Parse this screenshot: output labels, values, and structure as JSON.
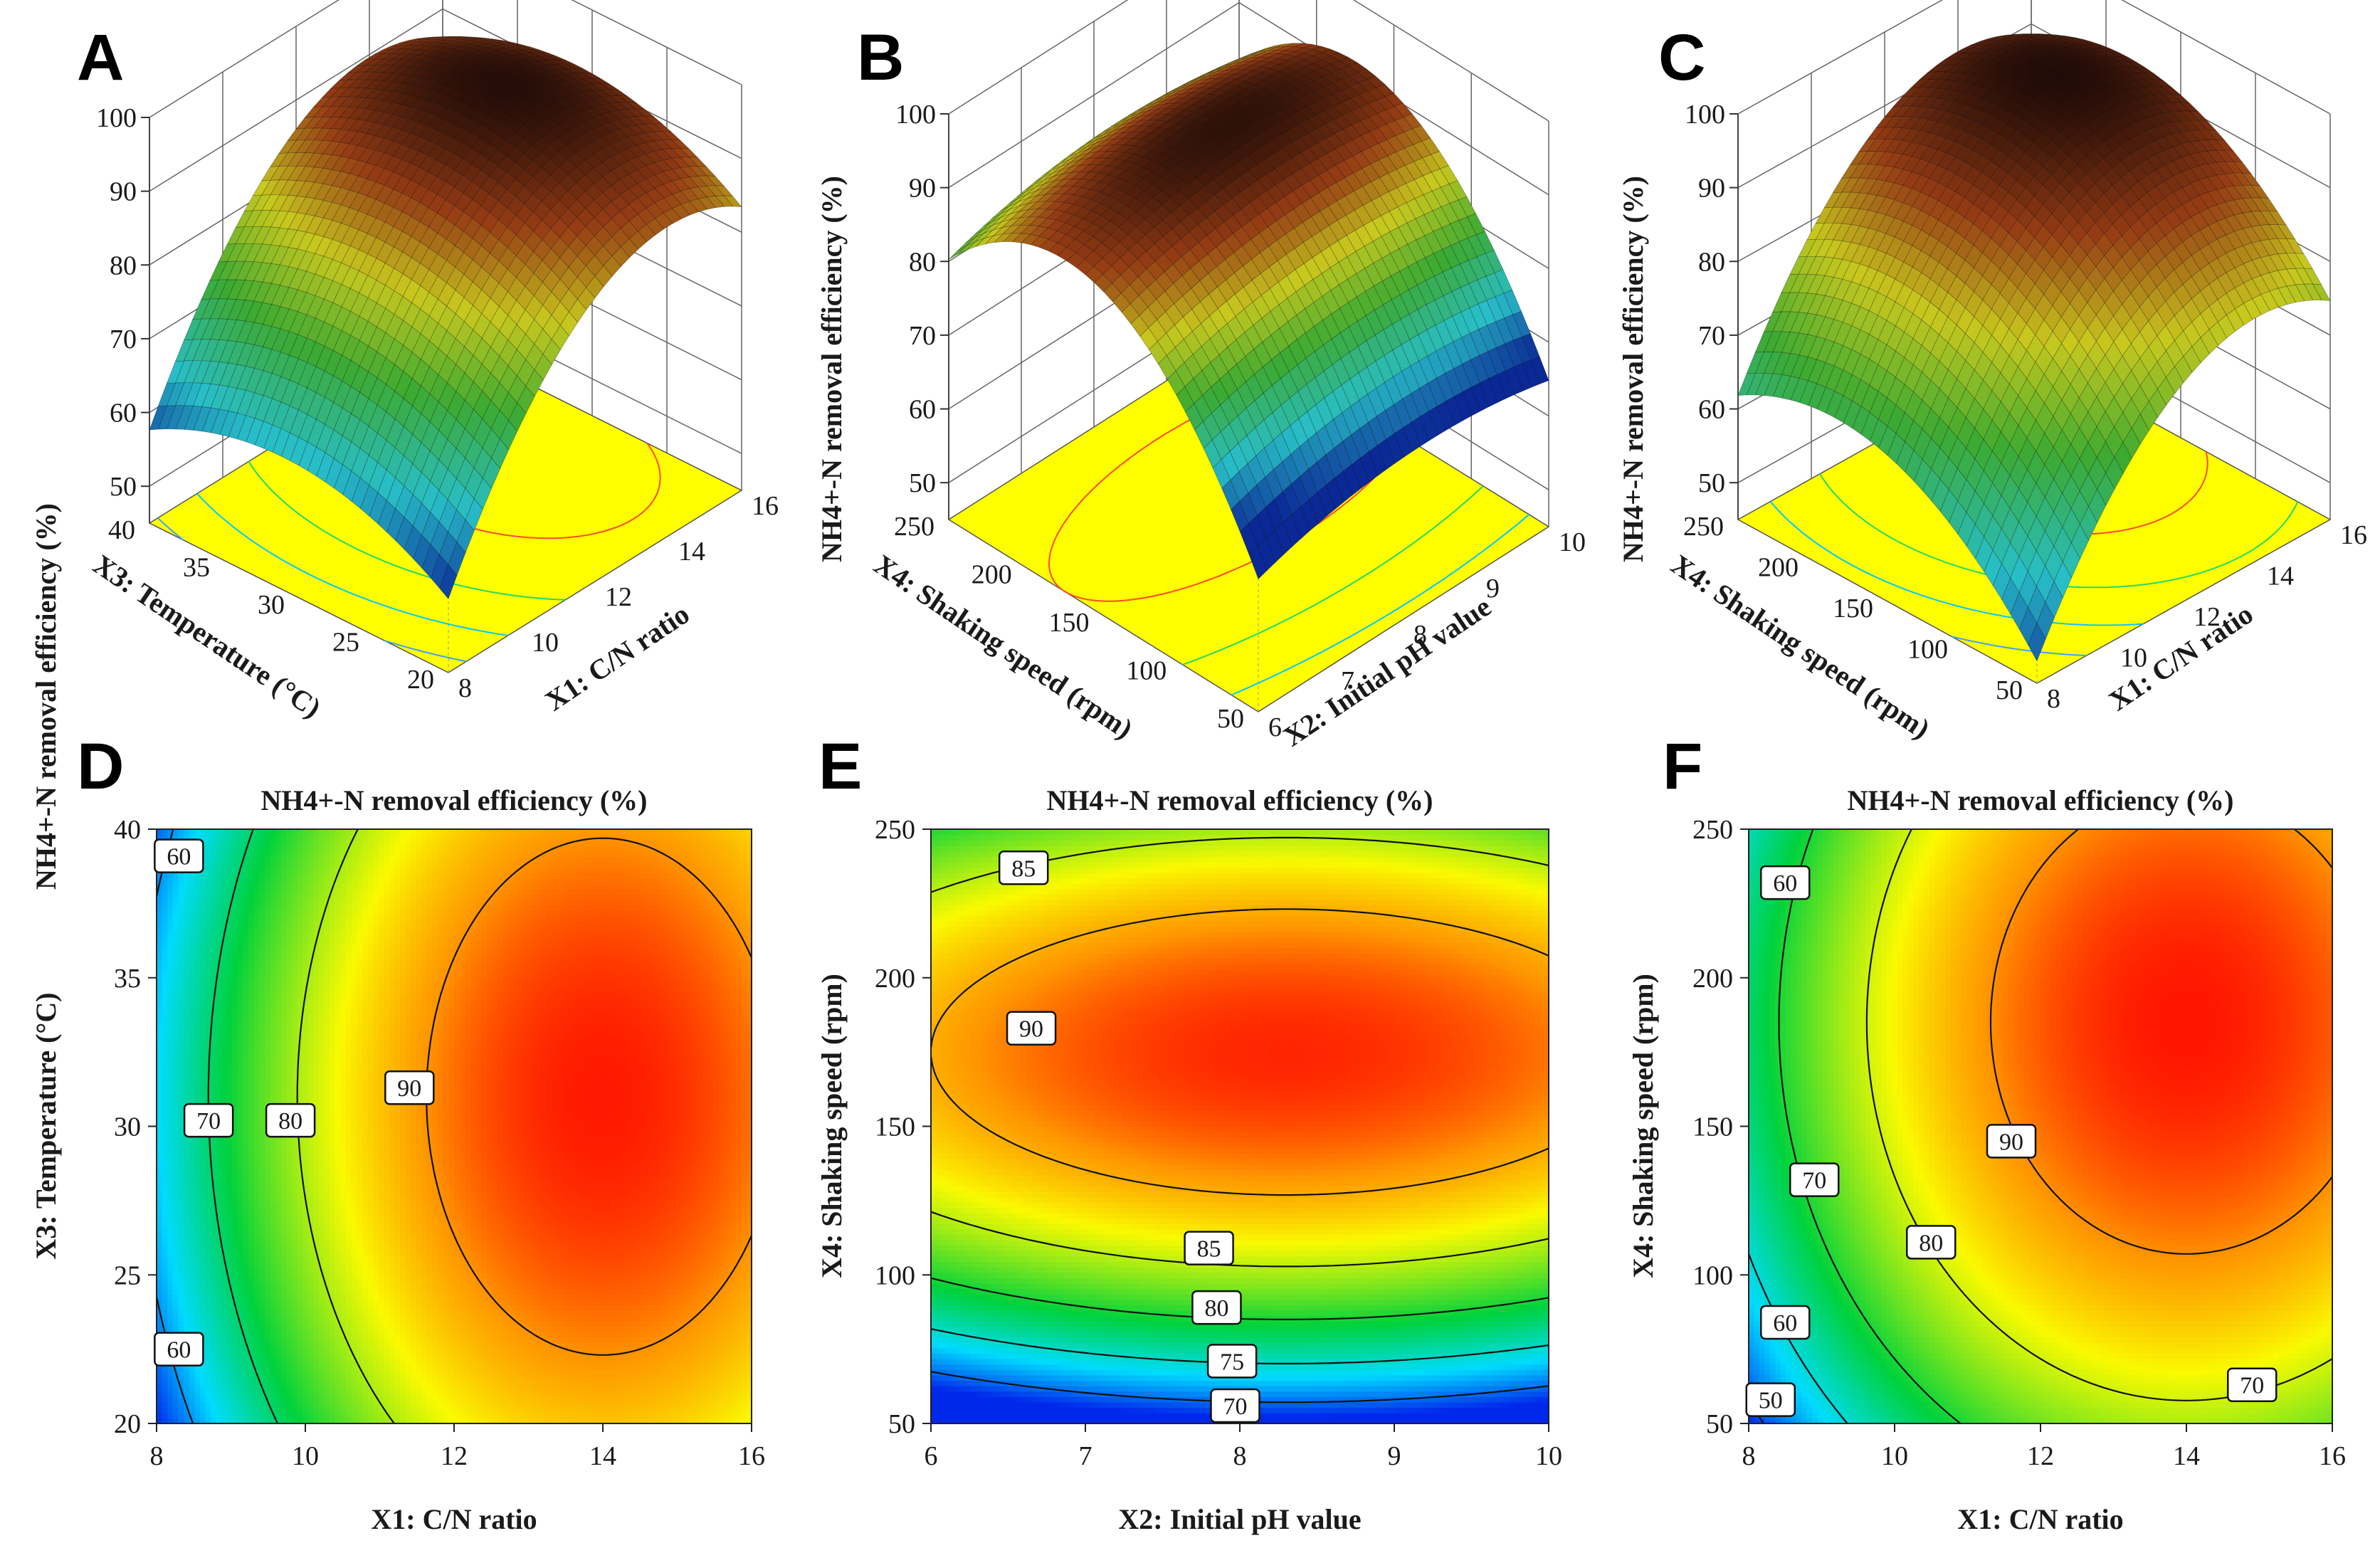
{
  "figure": {
    "panels": [
      "A",
      "B",
      "C",
      "D",
      "E",
      "F"
    ],
    "response": "NH4+-N removal efficiency (%)"
  },
  "chart_data": [
    {
      "panel": "A",
      "type": "surface3d",
      "zlabel": "NH4+-N removal efficiency (%)",
      "zlim": [
        45,
        100
      ],
      "ztick_labels": [
        "50",
        "60",
        "70",
        "80",
        "90",
        "100"
      ],
      "xlabel": "X1: C/N ratio",
      "xlim": [
        8,
        16
      ],
      "xtick_labels": [
        "8",
        "10",
        "12",
        "14",
        "16"
      ],
      "ylabel": "X3: Temperature (°C)",
      "ylim": [
        20,
        40
      ],
      "ytick_labels": [
        "20",
        "25",
        "30",
        "35",
        "40"
      ],
      "surface_range": [
        55,
        96
      ]
    },
    {
      "panel": "B",
      "type": "surface3d",
      "zlabel": "NH4+-N removal efficiency (%)",
      "zlim": [
        45,
        100
      ],
      "ztick_labels": [
        "50",
        "60",
        "70",
        "80",
        "90",
        "100"
      ],
      "xlabel": "X2: Initial pH value",
      "xlim": [
        6,
        10
      ],
      "xtick_labels": [
        "6",
        "7",
        "8",
        "9",
        "10"
      ],
      "ylabel": "X4: Shaking speed (rpm)",
      "ylim": [
        50,
        250
      ],
      "ytick_labels": [
        "50",
        "100",
        "150",
        "200",
        "250"
      ],
      "surface_range": [
        68,
        95
      ]
    },
    {
      "panel": "C",
      "type": "surface3d",
      "zlabel": "NH4+-N removal efficiency (%)",
      "zlim": [
        45,
        100
      ],
      "ztick_labels": [
        "50",
        "60",
        "70",
        "80",
        "90",
        "100"
      ],
      "xlabel": "X1: C/N ratio",
      "xlim": [
        8,
        16
      ],
      "xtick_labels": [
        "8",
        "10",
        "12",
        "14",
        "16"
      ],
      "ylabel": "X4: Shaking speed (rpm)",
      "ylim": [
        50,
        250
      ],
      "ytick_labels": [
        "50",
        "100",
        "150",
        "200",
        "250"
      ],
      "surface_range": [
        45,
        97
      ]
    },
    {
      "panel": "D",
      "type": "contour",
      "title": "NH4+-N removal efficiency (%)",
      "xlabel": "X1: C/N ratio",
      "ylabel": "X3: Temperature (°C)",
      "xlim": [
        8,
        16
      ],
      "ylim": [
        20,
        40
      ],
      "xticks": [
        8,
        10,
        12,
        14,
        16
      ],
      "yticks": [
        20,
        25,
        30,
        35,
        40
      ],
      "contour_levels": [
        60,
        70,
        80,
        90
      ],
      "contour_labels": [
        {
          "text": "60",
          "x": 8.3,
          "y": 39.1
        },
        {
          "text": "60",
          "x": 8.3,
          "y": 22.5
        },
        {
          "text": "70",
          "x": 8.7,
          "y": 30.2
        },
        {
          "text": "80",
          "x": 9.8,
          "y": 30.2
        },
        {
          "text": "90",
          "x": 11.4,
          "y": 31.3
        }
      ]
    },
    {
      "panel": "E",
      "type": "contour",
      "title": "NH4+-N removal efficiency (%)",
      "xlabel": "X2: Initial pH value",
      "ylabel": "X4: Shaking speed (rpm)",
      "xlim": [
        6,
        10
      ],
      "ylim": [
        50,
        250
      ],
      "xticks": [
        6,
        7,
        8,
        9,
        10
      ],
      "yticks": [
        50,
        100,
        150,
        200,
        250
      ],
      "contour_levels": [
        70,
        75,
        80,
        85,
        90
      ],
      "contour_labels": [
        {
          "text": "85",
          "x": 6.6,
          "y": 237
        },
        {
          "text": "90",
          "x": 6.65,
          "y": 183
        },
        {
          "text": "85",
          "x": 7.8,
          "y": 109
        },
        {
          "text": "80",
          "x": 7.85,
          "y": 89
        },
        {
          "text": "75",
          "x": 7.95,
          "y": 71
        },
        {
          "text": "70",
          "x": 7.97,
          "y": 56
        }
      ]
    },
    {
      "panel": "F",
      "type": "contour",
      "title": "NH4+-N removal efficiency (%)",
      "xlabel": "X1: C/N ratio",
      "ylabel": "X4: Shaking speed (rpm)",
      "xlim": [
        8,
        16
      ],
      "ylim": [
        50,
        250
      ],
      "xticks": [
        8,
        10,
        12,
        14,
        16
      ],
      "yticks": [
        50,
        100,
        150,
        200,
        250
      ],
      "contour_levels": [
        50,
        60,
        70,
        80,
        90
      ],
      "contour_labels": [
        {
          "text": "60",
          "x": 8.5,
          "y": 232
        },
        {
          "text": "70",
          "x": 8.9,
          "y": 132
        },
        {
          "text": "60",
          "x": 8.5,
          "y": 84
        },
        {
          "text": "50",
          "x": 8.3,
          "y": 58
        },
        {
          "text": "90",
          "x": 11.6,
          "y": 145
        },
        {
          "text": "80",
          "x": 10.5,
          "y": 111
        },
        {
          "text": "70",
          "x": 14.9,
          "y": 63
        }
      ]
    }
  ]
}
